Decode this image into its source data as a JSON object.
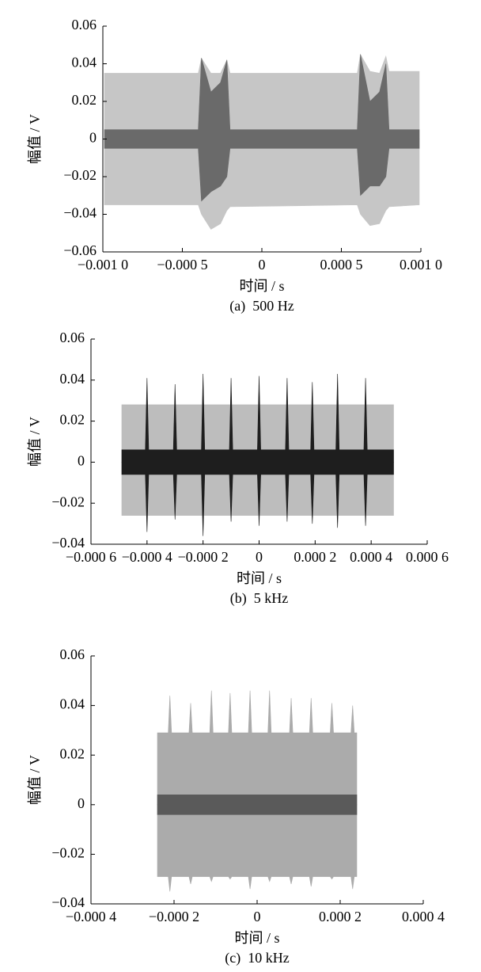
{
  "chart_data": [
    {
      "type": "area",
      "ylabel": "幅值 / V",
      "xlabel": "时间 / s",
      "caption": "(a)  500 Hz",
      "xlim": [
        -0.001,
        0.001
      ],
      "xticks": [
        {
          "value": -0.001,
          "label": "−0.001 0"
        },
        {
          "value": -0.0005,
          "label": "−0.000 5"
        },
        0,
        {
          "value": 0.0005,
          "label": "0.000 5"
        },
        {
          "value": 0.001,
          "label": "0.001 0"
        }
      ],
      "ylim": [
        -0.06,
        0.06
      ],
      "yticks": [
        {
          "value": -0.06,
          "label": "−0.06"
        },
        {
          "value": -0.04,
          "label": "−0.04"
        },
        {
          "value": -0.02,
          "label": "−0.02"
        },
        0,
        0.02,
        0.04,
        0.06
      ],
      "x": [
        -0.00099,
        -0.0004,
        -0.00038,
        -0.00032,
        -0.00026,
        -0.00022,
        -0.0002,
        0.0006,
        0.00062,
        0.00068,
        0.00074,
        0.00078,
        0.0008,
        0.00099
      ],
      "series": [
        {
          "color": "#c6c6c6",
          "values": [
            0.035,
            0.035,
            0.043,
            0.035,
            0.035,
            0.042,
            0.035,
            0.035,
            0.045,
            0.036,
            0.035,
            0.044,
            0.036,
            0.036
          ]
        },
        {
          "color": "#c6c6c6",
          "values": [
            -0.035,
            -0.035,
            -0.04,
            -0.048,
            -0.045,
            -0.038,
            -0.036,
            -0.035,
            -0.04,
            -0.046,
            -0.045,
            -0.038,
            -0.036,
            -0.035
          ]
        },
        {
          "color": "#6a6a6a",
          "values": [
            0.005,
            0.005,
            0.043,
            0.025,
            0.03,
            0.042,
            0.005,
            0.005,
            0.045,
            0.02,
            0.025,
            0.04,
            0.005,
            0.005
          ]
        },
        {
          "color": "#6a6a6a",
          "values": [
            -0.005,
            -0.005,
            -0.033,
            -0.028,
            -0.025,
            -0.02,
            -0.005,
            -0.005,
            -0.03,
            -0.025,
            -0.025,
            -0.02,
            -0.005,
            -0.005
          ]
        }
      ]
    },
    {
      "type": "area",
      "ylabel": "幅值 / V",
      "xlabel": "时间 / s",
      "caption": "(b)  5 kHz",
      "xlim": [
        -0.0006,
        0.0006
      ],
      "xticks": [
        {
          "value": -0.0006,
          "label": "−0.000 6"
        },
        {
          "value": -0.0004,
          "label": "−0.000 4"
        },
        {
          "value": -0.0002,
          "label": "−0.000 2"
        },
        0,
        {
          "value": 0.0002,
          "label": "0.000 2"
        },
        {
          "value": 0.0004,
          "label": "0.000 4"
        },
        {
          "value": 0.0006,
          "label": "0.000 6"
        }
      ],
      "ylim": [
        -0.04,
        0.06
      ],
      "yticks": [
        {
          "value": -0.04,
          "label": "−0.04"
        },
        {
          "value": -0.02,
          "label": "−0.02"
        },
        0,
        0.02,
        0.04,
        0.06
      ],
      "x": [
        -0.00049,
        -0.000406,
        -0.0004,
        -0.000394,
        -0.000306,
        -0.0003,
        -0.000294,
        -0.000206,
        -0.0002,
        -0.000194,
        -0.000106,
        -0.0001,
        -9.4e-05,
        -6e-06,
        0,
        6e-06,
        9.4e-05,
        0.0001,
        0.000106,
        0.000184,
        0.00019,
        0.000196,
        0.000274,
        0.00028,
        0.000286,
        0.000374,
        0.00038,
        0.000386,
        0.00048
      ],
      "series": [
        {
          "color": "#bdbdbd",
          "values": [
            0.028,
            0.028,
            0.028,
            0.028,
            0.028,
            0.028,
            0.028,
            0.028,
            0.028,
            0.028,
            0.028,
            0.028,
            0.028,
            0.028,
            0.028,
            0.028,
            0.028,
            0.028,
            0.028,
            0.028,
            0.028,
            0.028,
            0.028,
            0.028,
            0.028,
            0.028,
            0.028,
            0.028,
            0.028
          ]
        },
        {
          "color": "#bdbdbd",
          "values": [
            -0.026,
            -0.026,
            -0.026,
            -0.026,
            -0.026,
            -0.026,
            -0.026,
            -0.026,
            -0.026,
            -0.026,
            -0.026,
            -0.026,
            -0.026,
            -0.026,
            -0.026,
            -0.026,
            -0.026,
            -0.026,
            -0.026,
            -0.026,
            -0.026,
            -0.026,
            -0.026,
            -0.026,
            -0.026,
            -0.026,
            -0.026,
            -0.026,
            -0.026
          ]
        },
        {
          "color": "#1e1e1e",
          "values": [
            0.006,
            0.006,
            0.041,
            0.006,
            0.006,
            0.038,
            0.006,
            0.006,
            0.043,
            0.006,
            0.006,
            0.041,
            0.006,
            0.006,
            0.042,
            0.006,
            0.006,
            0.041,
            0.006,
            0.006,
            0.039,
            0.006,
            0.006,
            0.043,
            0.006,
            0.006,
            0.041,
            0.006,
            0.006
          ]
        },
        {
          "color": "#1e1e1e",
          "values": [
            -0.006,
            -0.006,
            -0.034,
            -0.006,
            -0.006,
            -0.028,
            -0.006,
            -0.006,
            -0.036,
            -0.006,
            -0.006,
            -0.029,
            -0.006,
            -0.006,
            -0.031,
            -0.006,
            -0.006,
            -0.029,
            -0.006,
            -0.006,
            -0.03,
            -0.006,
            -0.006,
            -0.032,
            -0.006,
            -0.006,
            -0.031,
            -0.006,
            -0.006
          ]
        }
      ]
    },
    {
      "type": "area",
      "ylabel": "幅值 / V",
      "xlabel": "时间 / s",
      "caption": "(c)  10 kHz",
      "xlim": [
        -0.0004,
        0.0004
      ],
      "xticks": [
        {
          "value": -0.0004,
          "label": "−0.000 4"
        },
        {
          "value": -0.0002,
          "label": "−0.000 2"
        },
        0,
        {
          "value": 0.0002,
          "label": "0.000 2"
        },
        {
          "value": 0.0004,
          "label": "0.000 4"
        }
      ],
      "ylim": [
        -0.04,
        0.06
      ],
      "yticks": [
        {
          "value": -0.04,
          "label": "−0.04"
        },
        {
          "value": -0.02,
          "label": "−0.02"
        },
        0,
        0.02,
        0.04,
        0.06
      ],
      "x": [
        -0.00024,
        -0.000214,
        -0.00021,
        -0.000206,
        -0.000164,
        -0.00016,
        -0.000156,
        -0.000114,
        -0.00011,
        -0.000106,
        -6.9e-05,
        -6.5e-05,
        -6.1e-05,
        -2.1e-05,
        -1.7e-05,
        -1.3e-05,
        2.6e-05,
        3e-05,
        3.4e-05,
        7.8e-05,
        8.2e-05,
        8.6e-05,
        0.000126,
        0.00013,
        0.000134,
        0.000176,
        0.00018,
        0.000184,
        0.000226,
        0.00023,
        0.000234,
        0.00024
      ],
      "series": [
        {
          "color": "#ababab",
          "values": [
            0.029,
            0.029,
            0.044,
            0.029,
            0.029,
            0.041,
            0.029,
            0.029,
            0.046,
            0.029,
            0.029,
            0.045,
            0.029,
            0.029,
            0.046,
            0.029,
            0.029,
            0.046,
            0.029,
            0.029,
            0.043,
            0.029,
            0.029,
            0.043,
            0.029,
            0.029,
            0.041,
            0.029,
            0.029,
            0.04,
            0.029,
            0.029
          ]
        },
        {
          "color": "#ababab",
          "values": [
            -0.029,
            -0.029,
            -0.035,
            -0.029,
            -0.029,
            -0.032,
            -0.029,
            -0.029,
            -0.031,
            -0.029,
            -0.029,
            -0.03,
            -0.029,
            -0.029,
            -0.034,
            -0.029,
            -0.029,
            -0.031,
            -0.029,
            -0.029,
            -0.032,
            -0.029,
            -0.029,
            -0.033,
            -0.029,
            -0.029,
            -0.03,
            -0.029,
            -0.029,
            -0.034,
            -0.029,
            -0.029
          ]
        },
        {
          "color": "#5a5a5a",
          "values": [
            0.004,
            0.004,
            0.004,
            0.004,
            0.004,
            0.004,
            0.004,
            0.004,
            0.004,
            0.004,
            0.004,
            0.004,
            0.004,
            0.004,
            0.004,
            0.004,
            0.004,
            0.004,
            0.004,
            0.004,
            0.004,
            0.004,
            0.004,
            0.004,
            0.004,
            0.004,
            0.004,
            0.004,
            0.004,
            0.004,
            0.004,
            0.004
          ]
        },
        {
          "color": "#5a5a5a",
          "values": [
            -0.004,
            -0.004,
            -0.004,
            -0.004,
            -0.004,
            -0.004,
            -0.004,
            -0.004,
            -0.004,
            -0.004,
            -0.004,
            -0.004,
            -0.004,
            -0.004,
            -0.004,
            -0.004,
            -0.004,
            -0.004,
            -0.004,
            -0.004,
            -0.004,
            -0.004,
            -0.004,
            -0.004,
            -0.004,
            -0.004,
            -0.004,
            -0.004,
            -0.004,
            -0.004,
            -0.004,
            -0.004
          ]
        }
      ]
    }
  ]
}
